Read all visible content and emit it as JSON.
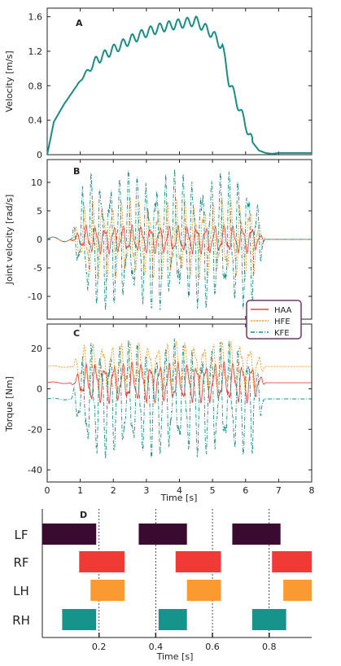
{
  "colors": {
    "velocity": "#1a8c84",
    "haa": "#e8453c",
    "hfe": "#f5962a",
    "kfe": "#1a8c84",
    "legend_border": "#6b3a6b",
    "lf": "#3a0a30",
    "rf": "#f03a35",
    "lh": "#fb9a30",
    "rh": "#16938a"
  },
  "chart_data": [
    {
      "type": "line",
      "panel": "A",
      "xlim": [
        0,
        8
      ],
      "ylim": [
        0,
        1.7
      ],
      "yticks": [
        "0",
        "0.4",
        "0.8",
        "1.2",
        "1.6"
      ],
      "ylabel": "Velocity [m/s]",
      "series": [
        {
          "x": [
            0,
            0.2,
            0.5,
            1.0,
            1.5,
            2.0,
            2.5,
            3.0,
            3.5,
            4.0,
            4.5,
            5.0,
            5.3,
            5.5,
            5.8,
            6.0,
            6.2,
            6.4,
            6.6,
            6.8,
            7.0,
            8.0
          ],
          "y": [
            0,
            0.38,
            0.58,
            0.86,
            1.1,
            1.22,
            1.33,
            1.42,
            1.48,
            1.52,
            1.55,
            1.4,
            1.25,
            0.85,
            0.55,
            0.35,
            0.15,
            0.05,
            0.02,
            0.01,
            0.02,
            0.02
          ]
        }
      ]
    },
    {
      "type": "line",
      "panel": "B",
      "xlim": [
        0,
        8
      ],
      "ylim": [
        -14,
        14
      ],
      "yticks": [
        "-10",
        "-5",
        "0",
        "5",
        "10"
      ],
      "ylabel": "Joint velocity [rad/s]",
      "active_range": [
        0.7,
        6.6
      ],
      "series": [
        {
          "name": "HAA",
          "amplitude": 2.5
        },
        {
          "name": "HFE",
          "amplitude": 7
        },
        {
          "name": "KFE",
          "amplitude": 12
        }
      ]
    },
    {
      "type": "line",
      "panel": "C",
      "xlim": [
        0,
        8
      ],
      "ylim": [
        -46,
        32
      ],
      "yticks": [
        "-40",
        "-20",
        "0",
        "20"
      ],
      "xticks": [
        "0",
        "1",
        "2",
        "3",
        "4",
        "5",
        "6",
        "7",
        "8"
      ],
      "xlabel": "Time [s]",
      "ylabel": "Torque [Nm]",
      "active_range": [
        0.7,
        6.6
      ],
      "series": [
        {
          "name": "HAA",
          "offset": 3,
          "amplitude": 10
        },
        {
          "name": "HFE",
          "offset": 11,
          "amplitude": 12
        },
        {
          "name": "KFE",
          "offset": -5,
          "amplitude": 28
        }
      ]
    },
    {
      "type": "gantt",
      "panel": "D",
      "xlim": [
        0,
        0.95
      ],
      "xticks": [
        "0.2",
        "0.4",
        "0.6",
        "0.8"
      ],
      "xtick_values": [
        0.2,
        0.4,
        0.6,
        0.8
      ],
      "xlabel": "Time [s]",
      "rows": [
        "LF",
        "RF",
        "LH",
        "RH"
      ],
      "bars": {
        "LF": [
          [
            0.0,
            0.19
          ],
          [
            0.34,
            0.51
          ],
          [
            0.67,
            0.84
          ]
        ],
        "RF": [
          [
            0.13,
            0.29
          ],
          [
            0.47,
            0.63
          ],
          [
            0.81,
            0.95
          ]
        ],
        "LH": [
          [
            0.17,
            0.29
          ],
          [
            0.51,
            0.63
          ],
          [
            0.85,
            0.95
          ]
        ],
        "RH": [
          [
            0.07,
            0.19
          ],
          [
            0.41,
            0.51
          ],
          [
            0.74,
            0.86
          ]
        ]
      }
    }
  ],
  "legend": {
    "items": [
      {
        "name": "HAA"
      },
      {
        "name": "HFE"
      },
      {
        "name": "KFE"
      }
    ]
  }
}
